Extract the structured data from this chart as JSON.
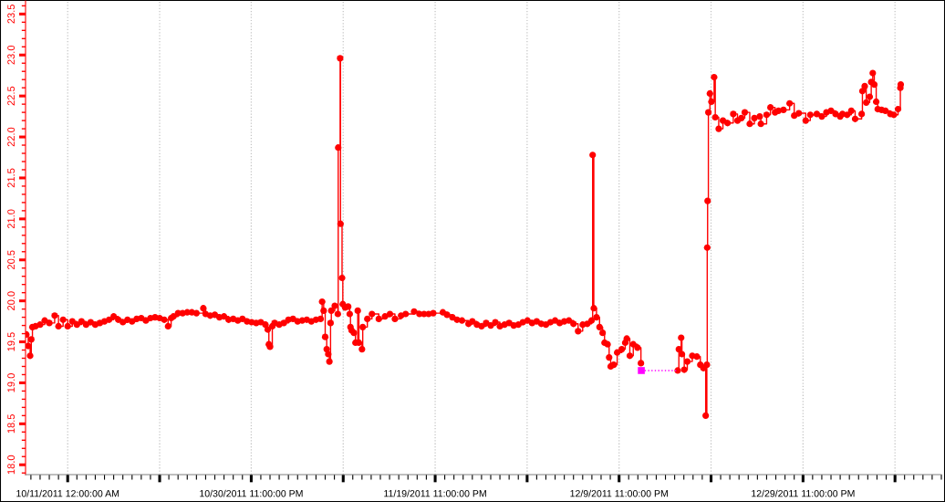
{
  "chart_data": {
    "type": "step",
    "x": [
      "2011-10-06T12:00",
      "2011-10-06T17:00",
      "2011-10-06T22:00",
      "2011-10-07T01:00",
      "2011-10-07T04:00",
      "2011-10-07T12:00",
      "2011-10-08T00:00",
      "2011-10-08T12:00",
      "2011-10-09T00:00",
      "2011-10-09T14:00",
      "2011-10-10T00:00",
      "2011-10-10T12:00",
      "2011-10-11T00:00",
      "2011-10-11T12:00",
      "2011-10-12T00:00",
      "2011-10-12T12:00",
      "2011-10-13T00:00",
      "2011-10-13T12:00",
      "2011-10-14T00:00",
      "2011-10-14T12:00",
      "2011-10-15T00:00",
      "2011-10-15T12:00",
      "2011-10-16T00:00",
      "2011-10-16T12:00",
      "2011-10-17T00:00",
      "2011-10-17T12:00",
      "2011-10-18T00:00",
      "2011-10-18T12:00",
      "2011-10-19T00:00",
      "2011-10-19T12:00",
      "2011-10-20T00:00",
      "2011-10-20T12:00",
      "2011-10-21T00:00",
      "2011-10-21T12:00",
      "2011-10-21T22:00",
      "2011-10-22T06:00",
      "2011-10-22T12:00",
      "2011-10-23T00:00",
      "2011-10-23T12:00",
      "2011-10-24T00:00",
      "2011-10-24T12:00",
      "2011-10-25T00:00",
      "2011-10-25T18:00",
      "2011-10-26T00:00",
      "2011-10-26T12:00",
      "2011-10-27T00:00",
      "2011-10-27T12:00",
      "2011-10-28T00:00",
      "2011-10-28T12:00",
      "2011-10-29T00:00",
      "2011-10-29T12:00",
      "2011-10-30T00:00",
      "2011-10-30T12:00",
      "2011-10-31T00:00",
      "2011-10-31T12:00",
      "2011-11-01T00:00",
      "2011-11-01T12:00",
      "2011-11-01T18:00",
      "2011-11-01T21:00",
      "2011-11-02T00:00",
      "2011-11-02T06:00",
      "2011-11-02T12:00",
      "2011-11-03T00:00",
      "2011-11-03T12:00",
      "2011-11-04T00:00",
      "2011-11-04T12:00",
      "2011-11-05T00:00",
      "2011-11-05T12:00",
      "2011-11-06T00:00",
      "2011-11-06T12:00",
      "2011-11-07T00:00",
      "2011-11-07T12:00",
      "2011-11-07T16:00",
      "2011-11-07T20:00",
      "2011-11-08T00:00",
      "2011-11-08T04:00",
      "2011-11-08T08:00",
      "2011-11-08T11:00",
      "2011-11-08T14:00",
      "2011-11-08T16:00",
      "2011-11-09T01:00",
      "2011-11-09T09:00",
      "2011-11-09T10:00",
      "2011-11-09T15:00",
      "2011-11-09T16:00",
      "2011-11-09T20:00",
      "2011-11-09T22:00",
      "2011-11-10T04:00",
      "2011-11-10T12:00",
      "2011-11-10T16:00",
      "2011-11-10T18:00",
      "2011-11-10T21:00",
      "2011-11-11T03:00",
      "2011-11-11T07:00",
      "2011-11-11T13:00",
      "2011-11-11T16:00",
      "2011-11-12T00:00",
      "2011-11-12T02:00",
      "2011-11-12T14:00",
      "2011-11-13T02:00",
      "2011-11-13T20:00",
      "2011-11-14T12:00",
      "2011-11-15T01:00",
      "2011-11-15T14:00",
      "2011-11-16T06:00",
      "2011-11-16T18:00",
      "2011-11-17T16:00",
      "2011-11-18T06:00",
      "2011-11-18T18:00",
      "2011-11-19T06:00",
      "2011-11-19T18:00",
      "2011-11-20T19:00",
      "2011-11-21T06:00",
      "2011-11-21T20:00",
      "2011-11-22T08:00",
      "2011-11-22T21:00",
      "2011-11-23T14:00",
      "2011-11-24T00:00",
      "2011-11-24T12:00",
      "2011-11-25T00:00",
      "2011-11-25T12:00",
      "2011-11-26T00:00",
      "2011-11-26T12:00",
      "2011-11-27T00:00",
      "2011-11-27T12:00",
      "2011-11-28T00:00",
      "2011-11-28T12:00",
      "2011-11-29T00:00",
      "2011-11-29T12:00",
      "2011-11-30T00:00",
      "2011-11-30T12:00",
      "2011-12-01T00:00",
      "2011-12-01T12:00",
      "2011-12-02T00:00",
      "2011-12-02T12:00",
      "2011-12-03T00:00",
      "2011-12-03T12:00",
      "2011-12-04T00:00",
      "2011-12-04T12:00",
      "2011-12-05T00:00",
      "2011-12-05T12:00",
      "2011-12-06T00:00",
      "2011-12-06T12:00",
      "2011-12-06T23:00",
      "2011-12-07T02:00",
      "2011-12-07T05:00",
      "2011-12-07T12:00",
      "2011-12-07T20:00",
      "2011-12-08T04:00",
      "2011-12-08T09:00",
      "2011-12-08T17:00",
      "2011-12-08T21:00",
      "2011-12-09T01:00",
      "2011-12-09T09:00",
      "2011-12-09T18:00",
      "2011-12-10T06:00",
      "2011-12-10T15:00",
      "2011-12-10T19:00",
      "2011-12-11T03:00",
      "2011-12-11T12:00",
      "2011-12-11T23:00",
      "2011-12-12T08:00",
      "2011-12-12T09:00",
      "2011-12-16T08:00",
      "2011-12-16T11:00",
      "2011-12-16T17:00",
      "2011-12-16T19:00",
      "2011-12-17T01:00",
      "2011-12-17T09:00",
      "2011-12-17T22:00",
      "2011-12-18T10:00",
      "2011-12-18T19:00",
      "2011-12-19T03:00",
      "2011-12-19T09:00",
      "2011-12-19T12:00",
      "2011-12-19T13:00",
      "2011-12-19T14:00",
      "2011-12-19T16:00",
      "2011-12-19T20:00",
      "2011-12-20T00:00",
      "2011-12-20T07:00",
      "2011-12-20T10:00",
      "2011-12-20T19:00",
      "2011-12-21T06:00",
      "2011-12-21T18:00",
      "2011-12-22T09:00",
      "2011-12-22T20:00",
      "2011-12-23T06:00",
      "2011-12-23T15:00",
      "2011-12-24T04:00",
      "2011-12-24T16:00",
      "2011-12-25T06:00",
      "2011-12-25T09:00",
      "2011-12-26T00:00",
      "2011-12-26T10:00",
      "2011-12-26T22:00",
      "2011-12-27T07:00",
      "2011-12-27T20:00",
      "2011-12-28T12:00",
      "2011-12-29T00:00",
      "2011-12-29T12:00",
      "2011-12-30T06:00",
      "2011-12-30T18:00",
      "2011-12-31T11:00",
      "2012-01-01T00:00",
      "2012-01-01T12:00",
      "2012-01-02T00:00",
      "2012-01-02T12:00",
      "2012-01-03T00:00",
      "2012-01-03T06:00",
      "2012-01-03T18:00",
      "2012-01-04T05:00",
      "2012-01-04T15:00",
      "2012-01-05T08:00",
      "2012-01-05T10:00",
      "2012-01-05T16:00",
      "2012-01-05T20:00",
      "2012-01-06T05:00",
      "2012-01-06T09:00",
      "2012-01-06T13:00",
      "2012-01-06T17:00",
      "2012-01-06T22:00",
      "2012-01-07T02:00",
      "2012-01-07T12:00",
      "2012-01-07T22:00",
      "2012-01-08T11:00",
      "2012-01-08T20:00",
      "2012-01-09T07:00",
      "2012-01-09T13:00",
      "2012-01-09T14:00"
    ],
    "series": [
      {
        "color": "#ff0000",
        "values": [
          19.59,
          19.45,
          19.33,
          19.53,
          19.68,
          19.69,
          19.71,
          19.76,
          19.73,
          19.82,
          19.69,
          19.77,
          19.69,
          19.75,
          19.71,
          19.75,
          19.71,
          19.74,
          19.71,
          19.73,
          19.75,
          19.77,
          19.81,
          19.77,
          19.74,
          19.77,
          19.75,
          19.78,
          19.79,
          19.76,
          19.79,
          19.8,
          19.79,
          19.77,
          19.69,
          19.79,
          19.81,
          19.85,
          19.85,
          19.86,
          19.86,
          19.85,
          19.91,
          19.84,
          19.82,
          19.83,
          19.8,
          19.81,
          19.77,
          19.78,
          19.76,
          19.78,
          19.75,
          19.74,
          19.73,
          19.74,
          19.71,
          19.65,
          19.47,
          19.44,
          19.69,
          19.73,
          19.71,
          19.73,
          19.77,
          19.78,
          19.75,
          19.76,
          19.77,
          19.75,
          19.77,
          19.78,
          19.99,
          19.88,
          19.56,
          19.41,
          19.35,
          19.26,
          19.73,
          19.88,
          19.94,
          19.84,
          21.87,
          22.96,
          20.94,
          20.28,
          19.96,
          19.92,
          19.93,
          19.84,
          19.68,
          19.64,
          19.61,
          19.49,
          19.88,
          19.49,
          19.41,
          19.68,
          19.78,
          19.84,
          19.78,
          19.81,
          19.84,
          19.78,
          19.82,
          19.84,
          19.87,
          19.84,
          19.84,
          19.84,
          19.85,
          19.86,
          19.83,
          19.8,
          19.77,
          19.76,
          19.72,
          19.75,
          19.71,
          19.69,
          19.73,
          19.7,
          19.74,
          19.69,
          19.71,
          19.73,
          19.7,
          19.71,
          19.74,
          19.76,
          19.73,
          19.75,
          19.72,
          19.71,
          19.74,
          19.76,
          19.73,
          19.75,
          19.76,
          19.72,
          19.63,
          19.71,
          19.72,
          19.76,
          21.78,
          19.91,
          19.8,
          19.68,
          19.61,
          19.49,
          19.47,
          19.31,
          19.2,
          19.22,
          19.37,
          19.41,
          19.49,
          19.54,
          19.33,
          19.47,
          19.43,
          19.24,
          null,
          19.15,
          19.41,
          19.55,
          19.35,
          19.16,
          19.26,
          19.33,
          19.32,
          19.22,
          19.18,
          18.6,
          19.22,
          20.65,
          21.22,
          22.3,
          22.53,
          22.43,
          22.73,
          22.24,
          22.1,
          22.2,
          22.17,
          22.28,
          22.2,
          22.23,
          22.3,
          22.16,
          22.23,
          22.25,
          22.16,
          22.27,
          22.36,
          22.3,
          22.32,
          22.33,
          22.41,
          22.26,
          22.29,
          22.2,
          22.27,
          22.28,
          22.25,
          22.3,
          22.32,
          22.28,
          22.25,
          22.28,
          22.27,
          22.32,
          22.22,
          22.28,
          22.56,
          22.62,
          22.42,
          22.49,
          22.67,
          22.78,
          22.64,
          22.43,
          22.34,
          22.33,
          22.32,
          22.28,
          22.27,
          22.34,
          22.6,
          22.64
        ]
      },
      {
        "type": "line",
        "color": "#ff00ff",
        "x": [
          "2011-12-12T09:00",
          "2011-12-16T08:00"
        ],
        "values": [
          19.15,
          19.15
        ],
        "line_style": "dotted",
        "marker": "none"
      },
      {
        "type": "scatter",
        "color": "#ff00ff",
        "x": [
          "2011-12-12T09:00"
        ],
        "values": [
          19.15
        ],
        "marker": "square"
      }
    ],
    "xlim": [
      "2011-10-06T10:00",
      "2012-01-14T00:00"
    ],
    "xticks": [
      {
        "value": "2011-10-11T00:00",
        "label": "10/11/2011 12:00:00 AM"
      },
      {
        "value": "2011-10-21T00:00",
        "label": null
      },
      {
        "value": "2011-10-30T23:00",
        "label": "10/30/2011 11:00:00 PM"
      },
      {
        "value": "2011-11-09T23:00",
        "label": null
      },
      {
        "value": "2011-11-19T23:00",
        "label": "11/19/2011 11:00:00 PM"
      },
      {
        "value": "2011-11-29T23:00",
        "label": null
      },
      {
        "value": "2011-12-09T23:00",
        "label": "12/9/2011 11:00:00 PM"
      },
      {
        "value": "2011-12-19T23:00",
        "label": null
      },
      {
        "value": "2011-12-29T23:00",
        "label": "12/29/2011 11:00:00 PM"
      },
      {
        "value": "2012-01-08T23:00",
        "label": null
      }
    ],
    "ylim": [
      17.88,
      23.66
    ],
    "yticks": [
      {
        "value": 18,
        "label": "18.0"
      },
      18.5,
      {
        "value": 19,
        "label": "19.0"
      },
      19.5,
      {
        "value": 20,
        "label": "20.0"
      },
      20.5,
      {
        "value": 21,
        "label": "21.0"
      },
      21.5,
      {
        "value": 22,
        "label": "22.0"
      },
      22.5,
      {
        "value": 23,
        "label": "23.0"
      },
      23.5
    ],
    "grid": "x",
    "marker": "circle",
    "line_style": "solid"
  }
}
